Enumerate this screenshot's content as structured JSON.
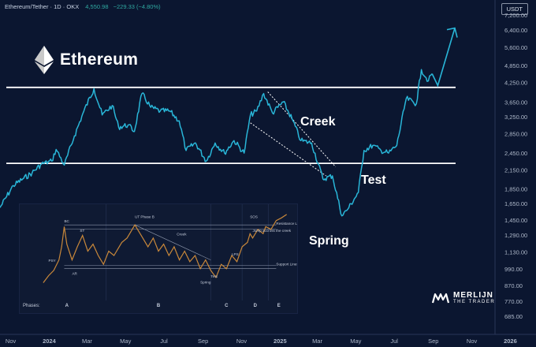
{
  "header": {
    "pair": "Ethereum/Tether · 1D · OKX",
    "price": "4,550.98",
    "change": "−229.33 (−4.80%)",
    "currency": "USDT"
  },
  "brand": {
    "name": "Ethereum",
    "icon": "ethereum-diamond-icon"
  },
  "annotations": {
    "creek": "Creek",
    "test": "Test",
    "spring": "Spring"
  },
  "watermark": "MERLIJN THE TRADER",
  "colors": {
    "background": "#0b1630",
    "price_line": "#29b6d8",
    "level_line": "#ffffff",
    "inset_line": "#c9883a"
  },
  "chart_data": [
    {
      "type": "line",
      "y_scale": "log",
      "ylim": [
        650,
        9000
      ],
      "grid": false,
      "x_ticks": [
        "Nov",
        "2024",
        "Mar",
        "May",
        "Jul",
        "Sep",
        "Nov",
        "2025",
        "Mar",
        "May",
        "Jul",
        "Sep",
        "Nov",
        "2026"
      ],
      "y_ticks": [
        "7,200.00",
        "6,400.00",
        "5,600.00",
        "4,850.00",
        "4,250.00",
        "3,650.00",
        "3,250.00",
        "2,850.00",
        "2,450.00",
        "2,150.00",
        "1,850.00",
        "1,650.00",
        "1,450.00",
        "1,290.00",
        "1,130.00",
        "990.00",
        "870.00",
        "770.00",
        "685.00"
      ],
      "levels": [
        {
          "name": "Resistance",
          "value": 4090
        },
        {
          "name": "Support",
          "value": 2260
        }
      ],
      "series": [
        {
          "x": [
            "2023-10-15",
            "2023-11-05",
            "2023-11-20",
            "2023-12-05",
            "2023-12-20",
            "2024-01-05",
            "2024-01-12",
            "2024-01-25",
            "2024-02-10",
            "2024-02-25",
            "2024-03-12",
            "2024-03-25",
            "2024-04-10",
            "2024-04-20",
            "2024-05-05",
            "2024-05-15",
            "2024-05-27",
            "2024-06-10",
            "2024-06-25",
            "2024-07-10",
            "2024-07-25",
            "2024-08-05",
            "2024-08-20",
            "2024-09-06",
            "2024-09-20",
            "2024-10-05",
            "2024-10-20",
            "2024-11-05",
            "2024-11-15",
            "2024-11-25",
            "2024-12-06",
            "2024-12-20",
            "2025-01-06",
            "2025-01-20",
            "2025-02-03",
            "2025-02-20",
            "2025-03-10",
            "2025-03-25",
            "2025-04-09",
            "2025-04-20",
            "2025-05-05",
            "2025-05-14",
            "2025-05-28",
            "2025-06-10",
            "2025-06-22",
            "2025-07-05",
            "2025-07-20",
            "2025-08-05",
            "2025-08-13",
            "2025-08-24",
            "2025-08-30"
          ],
          "y": [
            1600,
            1900,
            2000,
            2100,
            2250,
            2300,
            2520,
            2230,
            2800,
            3400,
            4050,
            3300,
            3550,
            3000,
            3050,
            2900,
            3900,
            3500,
            3400,
            3400,
            3150,
            2500,
            2650,
            2300,
            2650,
            2450,
            2700,
            2450,
            3300,
            3400,
            3900,
            3350,
            3650,
            3200,
            2700,
            2650,
            2000,
            2050,
            1500,
            1600,
            1800,
            2500,
            2600,
            2500,
            2450,
            2600,
            3750,
            3600,
            4700,
            4300,
            4550
          ]
        }
      ],
      "projection": {
        "x": [
          "2025-08-30",
          "2025-09-08",
          "2025-10-05"
        ],
        "y": [
          4550,
          4150,
          6500
        ]
      },
      "creek_channel": {
        "x": [
          "2024-11-15",
          "2025-03-15"
        ],
        "upper": [
          3950,
          2200
        ],
        "lower": [
          3100,
          2050
        ]
      },
      "annotations": [
        "Creek",
        "Test",
        "Spring"
      ]
    },
    {
      "type": "line",
      "xlim": [
        0,
        100
      ],
      "ylim": [
        0,
        100
      ],
      "x_ticks": [
        "A",
        "B",
        "C",
        "D",
        "E"
      ],
      "levels": [
        {
          "name": "Resistance Lines",
          "values": [
            80,
            75
          ]
        },
        {
          "name": "Support Lines",
          "values": [
            34,
            30
          ]
        }
      ],
      "series": [
        {
          "x": [
            6,
            8,
            10,
            12,
            13,
            14,
            15,
            17,
            19,
            21,
            23,
            25,
            27,
            29,
            31,
            33,
            35,
            36,
            38,
            41,
            44,
            46,
            48,
            50,
            52,
            54,
            56,
            58,
            60,
            62,
            64,
            66,
            68,
            70,
            72,
            74,
            76,
            78,
            80,
            82,
            84,
            85,
            86,
            88,
            90,
            91,
            93,
            95,
            97,
            99
          ],
          "y": [
            14,
            22,
            28,
            40,
            55,
            78,
            58,
            40,
            55,
            68,
            50,
            58,
            45,
            35,
            50,
            45,
            55,
            60,
            65,
            80,
            65,
            55,
            65,
            50,
            58,
            45,
            55,
            40,
            50,
            38,
            45,
            30,
            40,
            28,
            20,
            35,
            30,
            45,
            38,
            55,
            60,
            70,
            65,
            75,
            70,
            78,
            75,
            85,
            88,
            92
          ]
        }
      ],
      "labels": [
        "PSY",
        "BC",
        "AR",
        "ST",
        "UT Phase B",
        "Creek",
        "Spring",
        "Test",
        "LPS",
        "SOS",
        "Jump accross the creek",
        "Resistance Lines",
        "Support Lines"
      ],
      "phases_label": "Phases:"
    }
  ]
}
